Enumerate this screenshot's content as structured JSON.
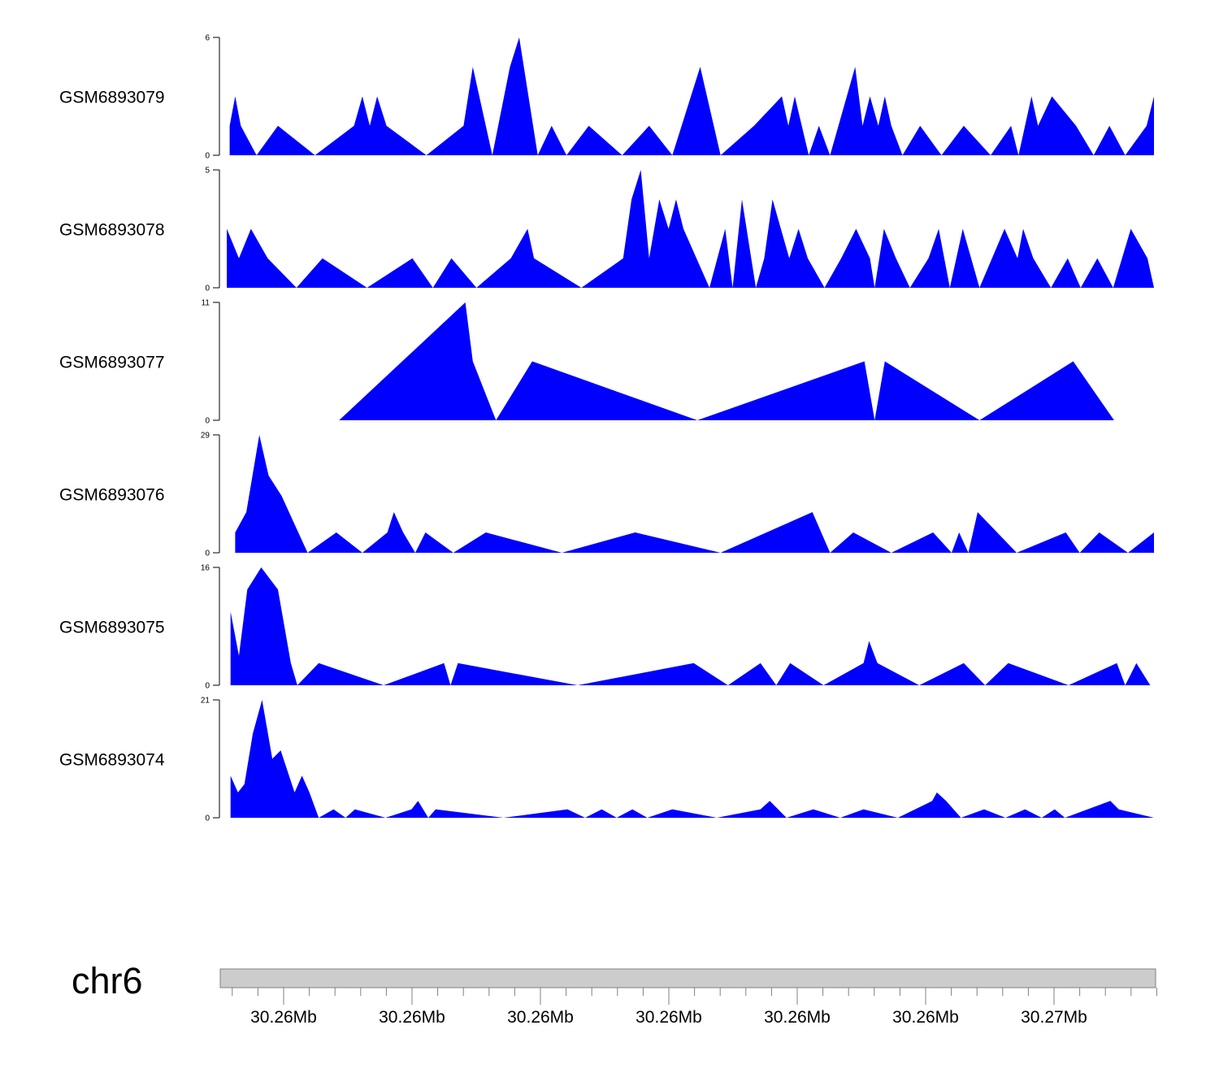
{
  "chart_data": {
    "type": "area",
    "title": "",
    "chromosome": "chr6",
    "fill_color": "#0000ff",
    "ideogram_color": "#cccccc",
    "x_tick_labels": [
      "30.26Mb",
      "30.26Mb",
      "30.26Mb",
      "30.26Mb",
      "30.26Mb",
      "30.26Mb",
      "30.27Mb"
    ],
    "x_range": [
      0,
      100
    ],
    "tracks": [
      {
        "name": "GSM6893079",
        "ylim": [
          0,
          6
        ],
        "ytick_labels": [
          "0",
          "6"
        ],
        "points": [
          [
            0.4,
            0
          ],
          [
            0.4,
            1.5
          ],
          [
            1.0,
            3
          ],
          [
            1.6,
            1.5
          ],
          [
            3.3,
            0
          ],
          [
            5.6,
            1.5
          ],
          [
            9.6,
            0
          ],
          [
            13.8,
            1.5
          ],
          [
            14.7,
            3
          ],
          [
            15.5,
            1.5
          ],
          [
            16.3,
            3
          ],
          [
            17.3,
            1.5
          ],
          [
            21.6,
            0
          ],
          [
            25.6,
            1.5
          ],
          [
            26.6,
            4.5
          ],
          [
            28.7,
            0
          ],
          [
            30.6,
            4.5
          ],
          [
            31.6,
            6
          ],
          [
            32.6,
            3
          ],
          [
            33.6,
            0
          ],
          [
            35.1,
            1.5
          ],
          [
            36.7,
            0
          ],
          [
            39.1,
            1.5
          ],
          [
            42.7,
            0
          ],
          [
            45.6,
            1.5
          ],
          [
            48.1,
            0
          ],
          [
            51.1,
            4.5
          ],
          [
            53.3,
            0
          ],
          [
            56.9,
            1.5
          ],
          [
            59.9,
            3
          ],
          [
            60.6,
            1.5
          ],
          [
            61.3,
            3
          ],
          [
            62.8,
            0
          ],
          [
            63.9,
            1.5
          ],
          [
            65.1,
            0
          ],
          [
            67.8,
            4.5
          ],
          [
            68.6,
            1.5
          ],
          [
            69.4,
            3
          ],
          [
            70.3,
            1.5
          ],
          [
            71.0,
            3
          ],
          [
            71.7,
            1.5
          ],
          [
            72.9,
            0
          ],
          [
            74.8,
            1.5
          ],
          [
            77.1,
            0
          ],
          [
            79.5,
            1.5
          ],
          [
            82.4,
            0
          ],
          [
            84.6,
            1.5
          ],
          [
            85.4,
            0
          ],
          [
            86.8,
            3
          ],
          [
            87.5,
            1.5
          ],
          [
            89.0,
            3
          ],
          [
            91.6,
            1.5
          ],
          [
            93.5,
            0
          ],
          [
            95.2,
            1.5
          ],
          [
            96.9,
            0
          ],
          [
            99.2,
            1.5
          ],
          [
            100,
            3
          ],
          [
            100,
            0
          ]
        ]
      },
      {
        "name": "GSM6893078",
        "ylim": [
          0,
          5
        ],
        "ytick_labels": [
          "0",
          "5"
        ],
        "points": [
          [
            0.1,
            0
          ],
          [
            0.1,
            2.5
          ],
          [
            1.4,
            1.25
          ],
          [
            2.7,
            2.5
          ],
          [
            4.5,
            1.25
          ],
          [
            7.6,
            0
          ],
          [
            10.4,
            1.25
          ],
          [
            15.2,
            0
          ],
          [
            20.1,
            1.25
          ],
          [
            22.3,
            0
          ],
          [
            24.3,
            1.25
          ],
          [
            27.0,
            0
          ],
          [
            30.7,
            1.25
          ],
          [
            32.5,
            2.5
          ],
          [
            33.2,
            1.25
          ],
          [
            38.3,
            0
          ],
          [
            42.8,
            1.25
          ],
          [
            43.7,
            3.75
          ],
          [
            44.7,
            5
          ],
          [
            45.6,
            1.25
          ],
          [
            46.7,
            3.75
          ],
          [
            47.7,
            2.5
          ],
          [
            48.5,
            3.75
          ],
          [
            49.3,
            2.5
          ],
          [
            52.1,
            0
          ],
          [
            53.8,
            2.5
          ],
          [
            54.6,
            0
          ],
          [
            55.6,
            3.75
          ],
          [
            57.1,
            0
          ],
          [
            58.0,
            1.25
          ],
          [
            58.9,
            3.75
          ],
          [
            60.7,
            1.25
          ],
          [
            61.7,
            2.5
          ],
          [
            62.7,
            1.25
          ],
          [
            64.5,
            0
          ],
          [
            66.3,
            1.25
          ],
          [
            67.9,
            2.5
          ],
          [
            69.4,
            1.25
          ],
          [
            69.9,
            0
          ],
          [
            70.9,
            2.5
          ],
          [
            72.2,
            1.25
          ],
          [
            73.7,
            0
          ],
          [
            75.7,
            1.25
          ],
          [
            76.8,
            2.5
          ],
          [
            78.0,
            0
          ],
          [
            79.4,
            2.5
          ],
          [
            81.2,
            0
          ],
          [
            83.9,
            2.5
          ],
          [
            85.3,
            1.25
          ],
          [
            85.9,
            2.5
          ],
          [
            87.0,
            1.25
          ],
          [
            88.9,
            0
          ],
          [
            90.7,
            1.25
          ],
          [
            92.1,
            0
          ],
          [
            93.9,
            1.25
          ],
          [
            95.6,
            0
          ],
          [
            97.5,
            2.5
          ],
          [
            99.3,
            1.25
          ],
          [
            100,
            0
          ]
        ]
      },
      {
        "name": "GSM6893077",
        "ylim": [
          0,
          11
        ],
        "ytick_labels": [
          "0",
          "11"
        ],
        "points": [
          [
            12.2,
            0
          ],
          [
            25.8,
            11
          ],
          [
            26.6,
            5.5
          ],
          [
            29.1,
            0
          ],
          [
            33.0,
            5.5
          ],
          [
            50.8,
            0
          ],
          [
            68.8,
            5.5
          ],
          [
            69.9,
            0
          ],
          [
            71.0,
            5.5
          ],
          [
            81.2,
            0
          ],
          [
            91.3,
            5.5
          ],
          [
            95.7,
            0
          ]
        ]
      },
      {
        "name": "GSM6893076",
        "ylim": [
          0,
          29
        ],
        "ytick_labels": [
          "0",
          "29"
        ],
        "points": [
          [
            1.0,
            0
          ],
          [
            1.0,
            5
          ],
          [
            2.2,
            10
          ],
          [
            3.6,
            29
          ],
          [
            4.6,
            19
          ],
          [
            6.0,
            14
          ],
          [
            8.8,
            0
          ],
          [
            11.9,
            5
          ],
          [
            14.7,
            0
          ],
          [
            17.4,
            5
          ],
          [
            18.1,
            10
          ],
          [
            19.1,
            5
          ],
          [
            20.4,
            0
          ],
          [
            21.5,
            5
          ],
          [
            24.5,
            0
          ],
          [
            28.0,
            5
          ],
          [
            36.2,
            0
          ],
          [
            44.1,
            5
          ],
          [
            53.3,
            0
          ],
          [
            63.2,
            10
          ],
          [
            65.1,
            0
          ],
          [
            67.6,
            5
          ],
          [
            71.7,
            0
          ],
          [
            76.2,
            5
          ],
          [
            78.2,
            0
          ],
          [
            79.0,
            5
          ],
          [
            80.0,
            0
          ],
          [
            81.0,
            10
          ],
          [
            85.2,
            0
          ],
          [
            90.5,
            5
          ],
          [
            92.0,
            0
          ],
          [
            94.1,
            5
          ],
          [
            97.2,
            0
          ],
          [
            100,
            5
          ],
          [
            100,
            0
          ]
        ]
      },
      {
        "name": "GSM6893075",
        "ylim": [
          0,
          16
        ],
        "ytick_labels": [
          "0",
          "16"
        ],
        "points": [
          [
            0.5,
            0
          ],
          [
            0.5,
            10
          ],
          [
            1.4,
            4
          ],
          [
            2.3,
            13
          ],
          [
            3.8,
            16
          ],
          [
            5.6,
            13
          ],
          [
            7.0,
            3
          ],
          [
            7.7,
            0
          ],
          [
            10.0,
            3
          ],
          [
            17.0,
            0
          ],
          [
            23.5,
            3
          ],
          [
            24.2,
            0
          ],
          [
            25.0,
            3
          ],
          [
            37.9,
            0
          ],
          [
            50.4,
            3
          ],
          [
            54.1,
            0
          ],
          [
            57.6,
            3
          ],
          [
            59.3,
            0
          ],
          [
            60.8,
            3
          ],
          [
            64.4,
            0
          ],
          [
            68.7,
            3
          ],
          [
            69.3,
            6
          ],
          [
            70.2,
            3
          ],
          [
            74.7,
            0
          ],
          [
            79.5,
            3
          ],
          [
            81.8,
            0
          ],
          [
            84.3,
            3
          ],
          [
            90.8,
            0
          ],
          [
            96.0,
            3
          ],
          [
            96.9,
            0
          ],
          [
            98.1,
            3
          ],
          [
            99.6,
            0
          ]
        ]
      },
      {
        "name": "GSM6893074",
        "ylim": [
          0,
          21
        ],
        "ytick_labels": [
          "0",
          "21"
        ],
        "points": [
          [
            0.5,
            0
          ],
          [
            0.5,
            7.5
          ],
          [
            1.3,
            4.5
          ],
          [
            2.0,
            6
          ],
          [
            2.9,
            15
          ],
          [
            3.9,
            21
          ],
          [
            5.0,
            10.5
          ],
          [
            5.9,
            12
          ],
          [
            7.4,
            4.5
          ],
          [
            8.2,
            7.5
          ],
          [
            9.0,
            4.5
          ],
          [
            10.0,
            0
          ],
          [
            11.6,
            1.5
          ],
          [
            12.9,
            0
          ],
          [
            13.9,
            1.5
          ],
          [
            17.2,
            0
          ],
          [
            20.0,
            1.5
          ],
          [
            20.7,
            3
          ],
          [
            21.8,
            0
          ],
          [
            22.6,
            1.5
          ],
          [
            29.9,
            0
          ],
          [
            36.8,
            1.5
          ],
          [
            38.7,
            0
          ],
          [
            40.5,
            1.5
          ],
          [
            42.1,
            0
          ],
          [
            43.8,
            1.5
          ],
          [
            45.4,
            0
          ],
          [
            48.1,
            1.5
          ],
          [
            52.9,
            0
          ],
          [
            57.6,
            1.5
          ],
          [
            58.6,
            3
          ],
          [
            59.5,
            1.5
          ],
          [
            60.4,
            0
          ],
          [
            63.3,
            1.5
          ],
          [
            66.2,
            0
          ],
          [
            68.7,
            1.5
          ],
          [
            72.4,
            0
          ],
          [
            76.1,
            3
          ],
          [
            76.6,
            4.5
          ],
          [
            77.6,
            3
          ],
          [
            79.2,
            0
          ],
          [
            81.7,
            1.5
          ],
          [
            84.0,
            0
          ],
          [
            86.1,
            1.5
          ],
          [
            87.9,
            0
          ],
          [
            89.3,
            1.5
          ],
          [
            90.4,
            0
          ],
          [
            95.3,
            3
          ],
          [
            96.2,
            1.5
          ],
          [
            100,
            0
          ]
        ]
      }
    ]
  }
}
